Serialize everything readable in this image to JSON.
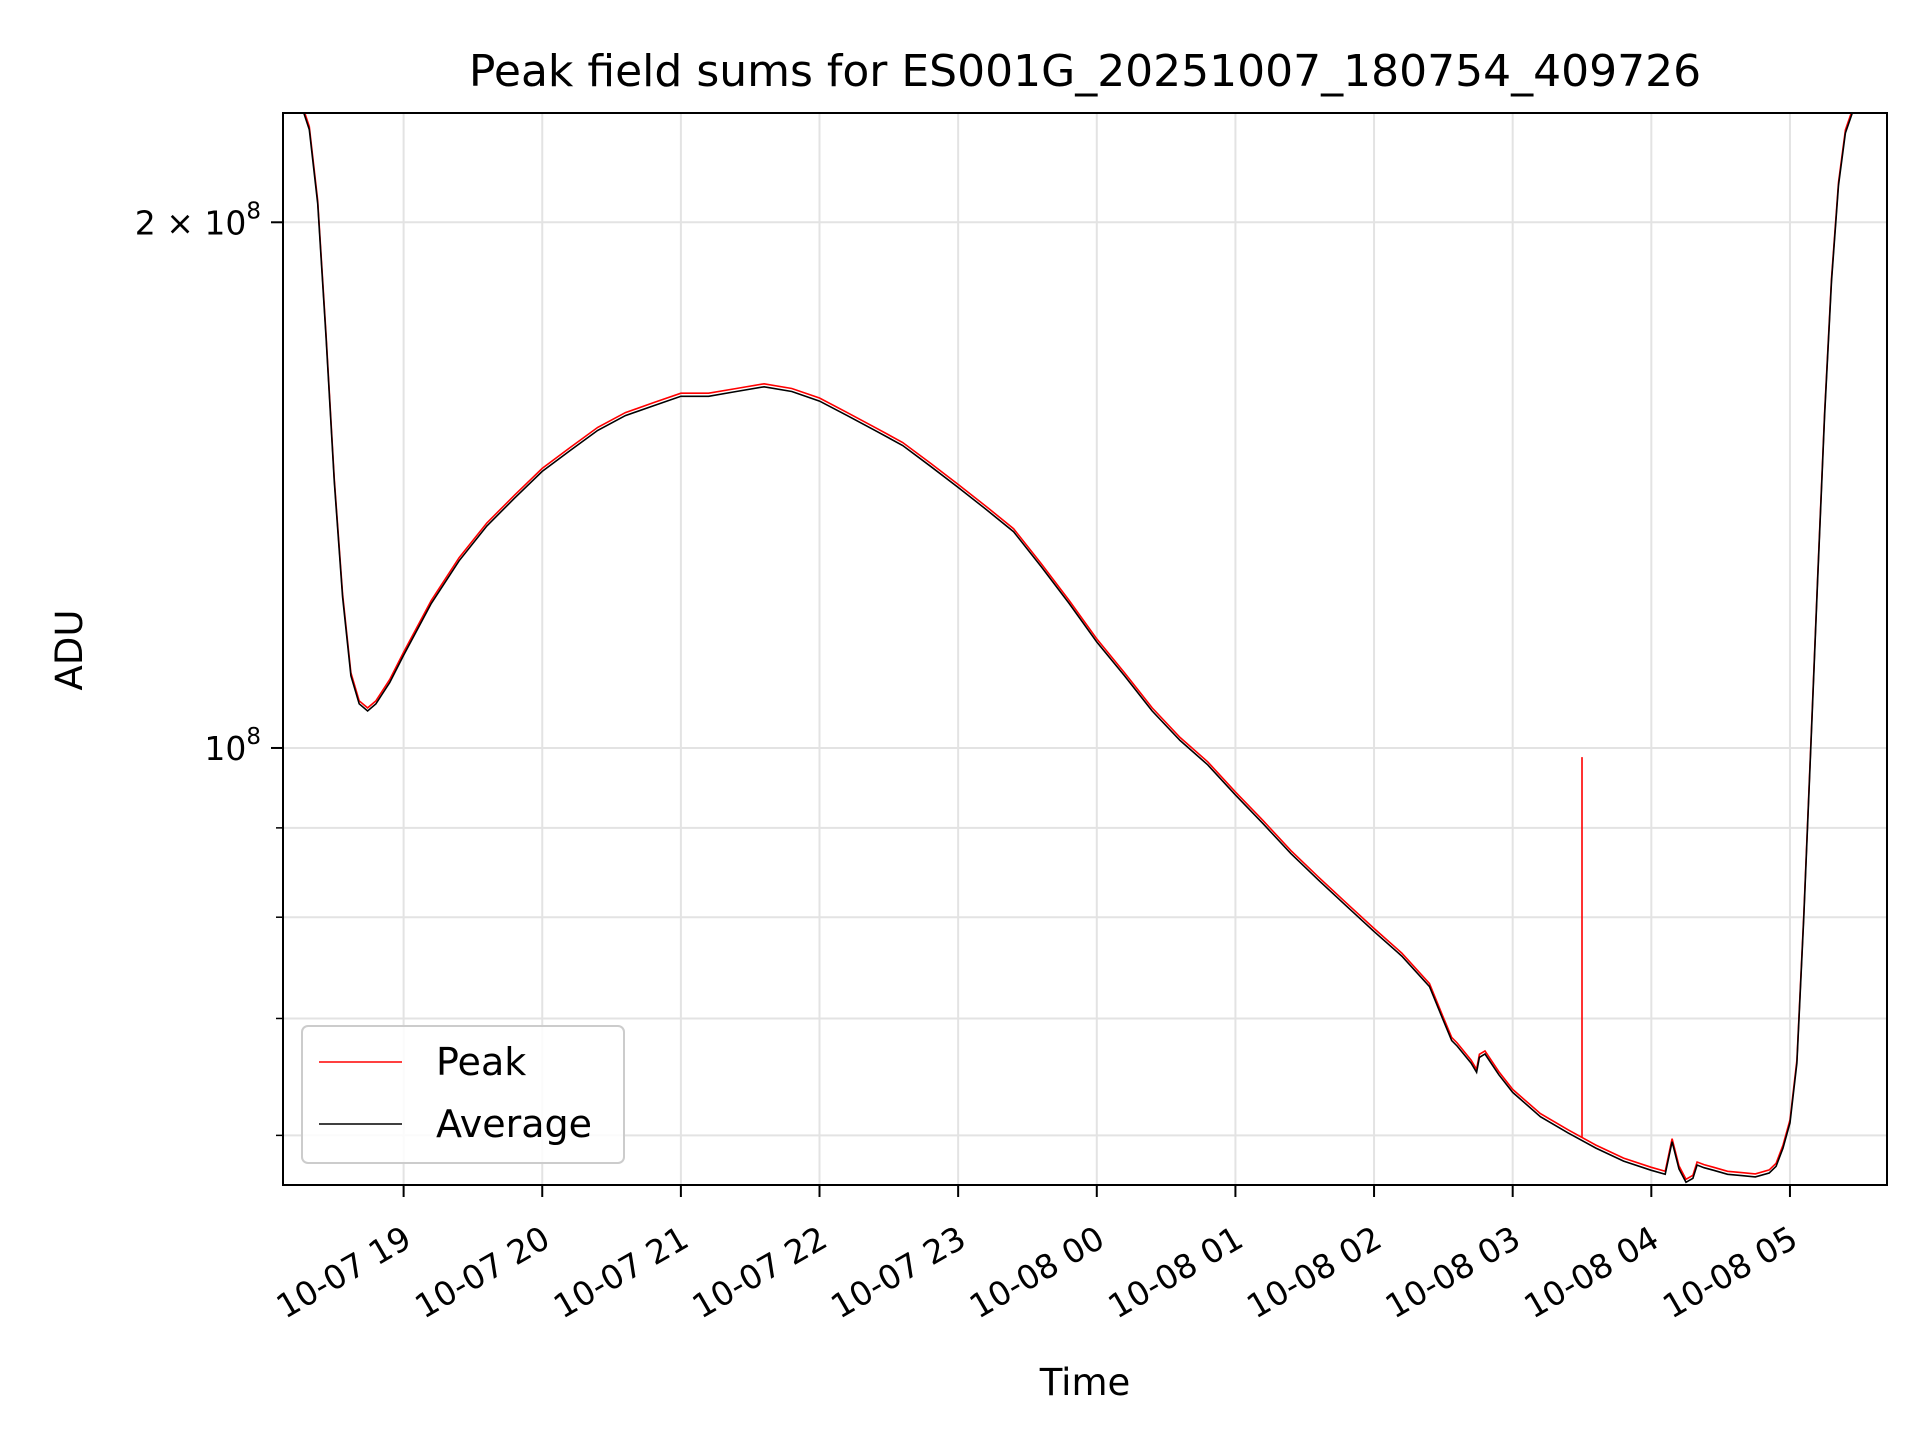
{
  "chart_data": {
    "type": "line",
    "title": "Peak field sums for ES001G_20251007_180754_409726",
    "xlabel": "Time",
    "ylabel": "ADU",
    "yscale": "log",
    "grid": true,
    "legend_position": "lower-left",
    "x_unit": "hours since 2025-10-07 00:00",
    "xlim": [
      18.13,
      29.7
    ],
    "ylim": [
      56200000,
      231000000
    ],
    "x_ticks": [
      {
        "value": 19,
        "label": "10-07 19"
      },
      {
        "value": 20,
        "label": "10-07 20"
      },
      {
        "value": 21,
        "label": "10-07 21"
      },
      {
        "value": 22,
        "label": "10-07 22"
      },
      {
        "value": 23,
        "label": "10-07 23"
      },
      {
        "value": 24,
        "label": "10-08 00"
      },
      {
        "value": 25,
        "label": "10-08 01"
      },
      {
        "value": 26,
        "label": "10-08 02"
      },
      {
        "value": 27,
        "label": "10-08 03"
      },
      {
        "value": 28,
        "label": "10-08 04"
      },
      {
        "value": 29,
        "label": "10-08 05"
      }
    ],
    "y_major_ticks": [
      {
        "value": 100000000,
        "base": "10",
        "exp": "8"
      },
      {
        "value": 200000000,
        "base": "2 × 10",
        "exp": "8"
      }
    ],
    "y_minor_ticks": [
      60000000,
      70000000,
      80000000,
      90000000
    ],
    "average_series": {
      "name": "Average",
      "color": "#000000",
      "x": [
        18.13,
        18.28,
        18.32,
        18.38,
        18.44,
        18.5,
        18.56,
        18.62,
        18.68,
        18.74,
        18.8,
        18.9,
        19.0,
        19.2,
        19.4,
        19.6,
        19.8,
        20.0,
        20.2,
        20.4,
        20.6,
        20.8,
        21.0,
        21.2,
        21.4,
        21.6,
        21.8,
        22.0,
        22.2,
        22.4,
        22.6,
        22.8,
        23.0,
        23.2,
        23.4,
        23.6,
        23.8,
        24.0,
        24.2,
        24.4,
        24.6,
        24.8,
        25.0,
        25.2,
        25.4,
        25.6,
        25.8,
        26.0,
        26.2,
        26.4,
        26.5,
        26.56,
        26.6,
        26.7,
        26.74,
        26.76,
        26.8,
        26.9,
        27.0,
        27.2,
        27.4,
        27.6,
        27.8,
        28.0,
        28.1,
        28.15,
        28.2,
        28.25,
        28.3,
        28.33,
        28.38,
        28.45,
        28.55,
        28.65,
        28.75,
        28.85,
        28.9,
        28.95,
        29.0,
        29.05,
        29.1,
        29.15,
        29.2,
        29.25,
        29.3,
        29.35,
        29.4,
        29.45,
        29.5,
        29.7
      ],
      "values": [
        231000000,
        231000000,
        226000000,
        205000000,
        172000000,
        142000000,
        122000000,
        110000000,
        106000000,
        105000000,
        106000000,
        109000000,
        113000000,
        121000000,
        128000000,
        134000000,
        139000000,
        144000000,
        148000000,
        152000000,
        155000000,
        157000000,
        159000000,
        159000000,
        160000000,
        161000000,
        160000000,
        158000000,
        155000000,
        152000000,
        149000000,
        145000000,
        141000000,
        137000000,
        133000000,
        127000000,
        121000000,
        115000000,
        110000000,
        105000000,
        101000000,
        97800000,
        94000000,
        90500000,
        87000000,
        84000000,
        81200000,
        78500000,
        76000000,
        73000000,
        69800000,
        68000000,
        67500000,
        66000000,
        65200000,
        66500000,
        66800000,
        65000000,
        63500000,
        61500000,
        60200000,
        59000000,
        58000000,
        57300000,
        57000000,
        59500000,
        57400000,
        56400000,
        56700000,
        57700000,
        57500000,
        57300000,
        57000000,
        56900000,
        56800000,
        57100000,
        57600000,
        59000000,
        61000000,
        66000000,
        80000000,
        100000000,
        125000000,
        155000000,
        185000000,
        210000000,
        225000000,
        231000000,
        231000000,
        231000000
      ]
    },
    "peak_series": {
      "name": "Peak",
      "color": "#ff0000",
      "offset_factor": 1.004,
      "spike": {
        "x": 27.5,
        "value": 98800000
      }
    }
  }
}
